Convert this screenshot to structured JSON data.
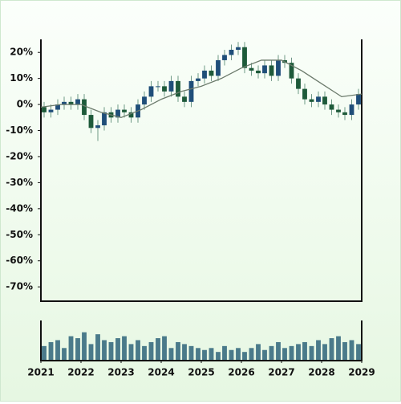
{
  "chart_data": {
    "type": "candlestick",
    "x": [
      2021.08,
      2021.25,
      2021.42,
      2021.58,
      2021.75,
      2021.92,
      2022.08,
      2022.25,
      2022.42,
      2022.58,
      2022.75,
      2022.92,
      2023.08,
      2023.25,
      2023.42,
      2023.58,
      2023.75,
      2023.92,
      2024.08,
      2024.25,
      2024.42,
      2024.58,
      2024.75,
      2024.92,
      2025.08,
      2025.25,
      2025.42,
      2025.58,
      2025.75,
      2025.92,
      2026.08,
      2026.25,
      2026.42,
      2026.58,
      2026.75,
      2026.92,
      2027.08,
      2027.25,
      2027.42,
      2027.58,
      2027.75,
      2027.92,
      2028.08,
      2028.25,
      2028.42,
      2028.58,
      2028.75,
      2028.92
    ],
    "open": [
      -1,
      -3,
      -2,
      0,
      1,
      0,
      2,
      -4,
      -9,
      -8,
      -3,
      -5,
      -2,
      -3,
      -5,
      0,
      3,
      7,
      7,
      5,
      9,
      3,
      1,
      9,
      10,
      13,
      11,
      17,
      19,
      21,
      22,
      14,
      13,
      12,
      15,
      11,
      17,
      16,
      10,
      6,
      2,
      1,
      3,
      0,
      -2,
      -3,
      -4,
      0
    ],
    "high": [
      1,
      0,
      2,
      3,
      3,
      4,
      4,
      -2,
      -6,
      -1,
      -1,
      0,
      0,
      -1,
      2,
      5,
      9,
      9,
      9,
      11,
      11,
      5,
      11,
      12,
      15,
      15,
      19,
      21,
      23,
      24,
      24,
      16,
      15,
      17,
      17,
      19,
      19,
      18,
      12,
      8,
      4,
      5,
      5,
      2,
      0,
      -1,
      2,
      6
    ],
    "low": [
      -5,
      -5,
      -4,
      -2,
      -2,
      -2,
      -6,
      -11,
      -14,
      -10,
      -7,
      -7,
      -5,
      -7,
      -7,
      -2,
      1,
      5,
      3,
      3,
      1,
      -1,
      -1,
      7,
      8,
      9,
      9,
      15,
      17,
      19,
      12,
      11,
      10,
      10,
      9,
      9,
      14,
      8,
      4,
      0,
      -1,
      -1,
      -2,
      -4,
      -5,
      -6,
      -6,
      -2
    ],
    "close": [
      -3,
      -2,
      0,
      1,
      0,
      2,
      -4,
      -9,
      -8,
      -3,
      -5,
      -2,
      -3,
      -5,
      0,
      3,
      7,
      7,
      5,
      9,
      3,
      1,
      9,
      10,
      13,
      11,
      17,
      19,
      21,
      22,
      14,
      13,
      12,
      15,
      11,
      17,
      16,
      10,
      6,
      2,
      1,
      3,
      0,
      -2,
      -3,
      -4,
      0,
      4
    ],
    "up_color": "#1f4e79",
    "down_color": "#1e5a3a",
    "wick_color": "#6f9a86",
    "moving_average": {
      "x": [
        2021.0,
        2021.5,
        2022.0,
        2022.5,
        2023.0,
        2023.5,
        2024.0,
        2024.5,
        2025.0,
        2025.5,
        2026.0,
        2026.5,
        2027.0,
        2027.5,
        2028.0,
        2028.5,
        2029.0
      ],
      "values": [
        -1,
        0,
        0,
        -3,
        -5,
        -2,
        2,
        5,
        7,
        10,
        14,
        17,
        17,
        13,
        8,
        3,
        4
      ],
      "color": "#6b7a6b"
    },
    "volume": {
      "values": [
        35,
        45,
        50,
        30,
        60,
        55,
        70,
        40,
        65,
        50,
        45,
        55,
        60,
        40,
        50,
        35,
        45,
        55,
        60,
        30,
        45,
        40,
        35,
        30,
        25,
        30,
        20,
        35,
        25,
        30,
        20,
        30,
        40,
        25,
        35,
        45,
        30,
        35,
        40,
        45,
        35,
        50,
        40,
        55,
        60,
        45,
        50,
        40
      ],
      "color": "#4a7a8a",
      "ylim": [
        0,
        100
      ]
    },
    "xlim": [
      2021,
      2029
    ],
    "xticks": [
      2021,
      2022,
      2023,
      2024,
      2025,
      2026,
      2027,
      2028,
      2029
    ],
    "ylim": [
      -75.5,
      25
    ],
    "yticks": [
      {
        "value": 20,
        "label": "20%"
      },
      {
        "value": 10,
        "label": "10%"
      },
      {
        "value": 0,
        "label": "0%"
      },
      {
        "value": -10,
        "label": "-10%"
      },
      {
        "value": -20,
        "label": "-20%"
      },
      {
        "value": -30,
        "label": "-30%"
      },
      {
        "value": -40,
        "label": "-40%"
      },
      {
        "value": -50,
        "label": "-50%"
      },
      {
        "value": -60,
        "label": "-60%"
      },
      {
        "value": -70,
        "label": "-70%"
      }
    ]
  }
}
